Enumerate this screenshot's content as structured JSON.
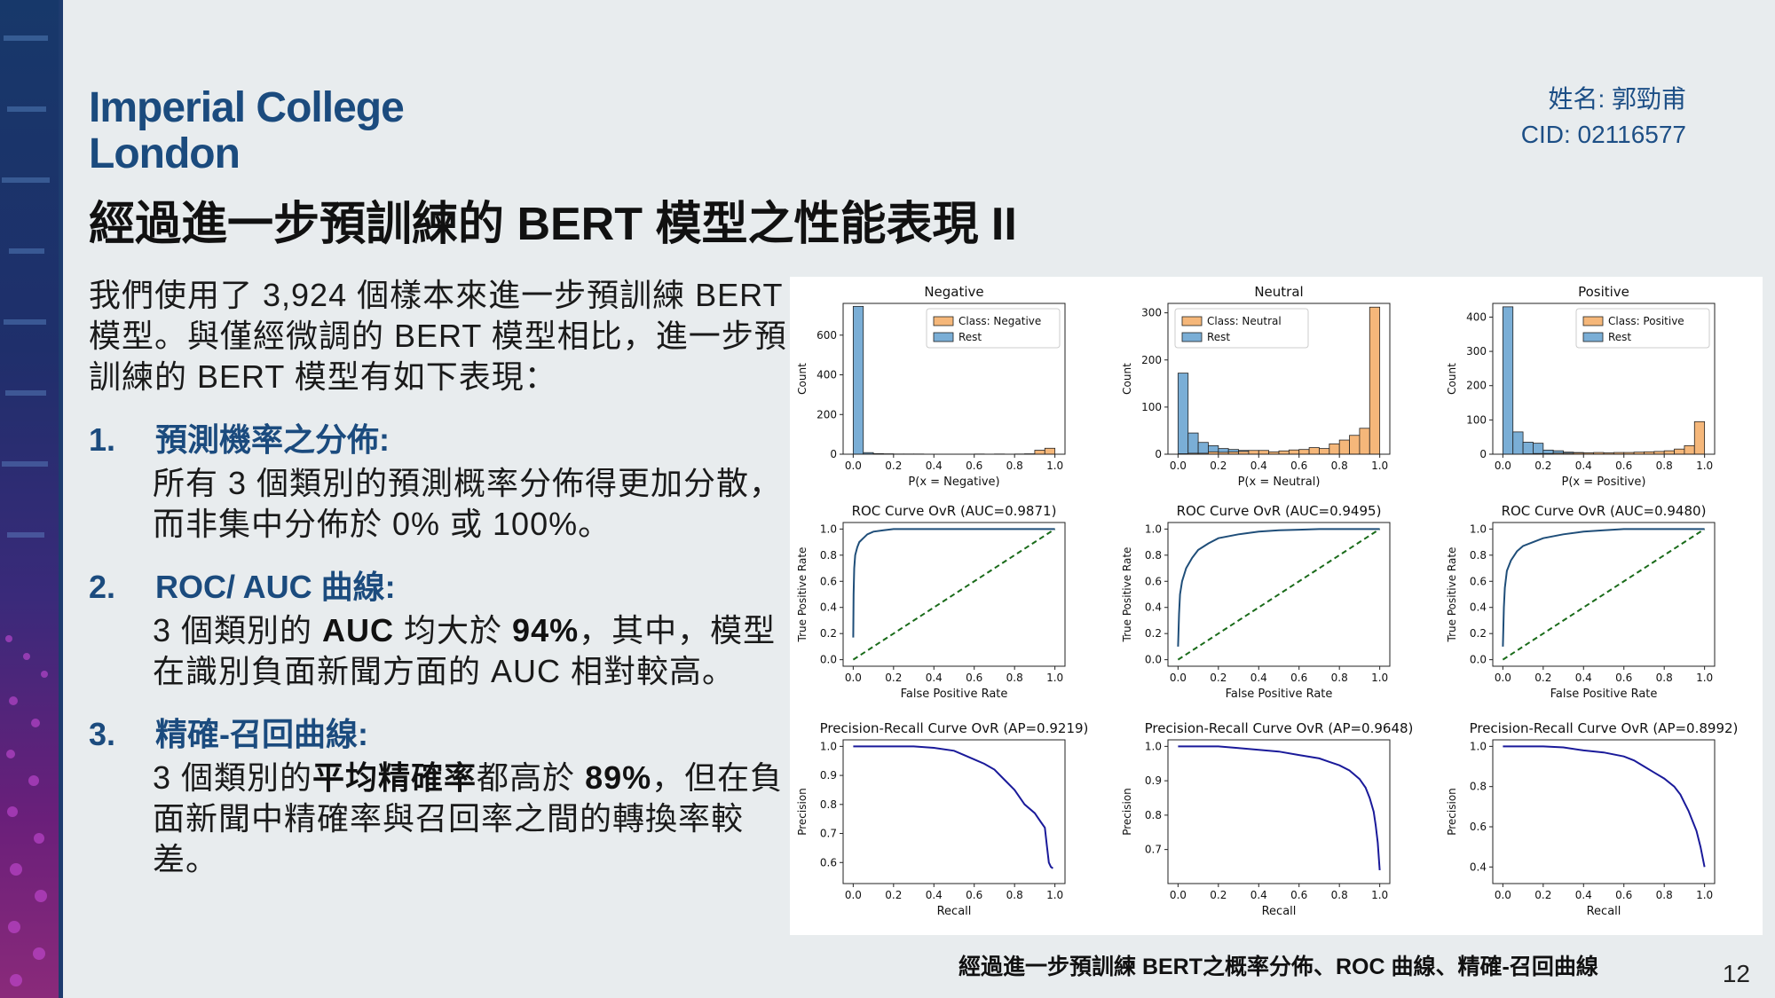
{
  "logo": {
    "line1": "Imperial College",
    "line2": "London"
  },
  "author": {
    "name": "姓名: 郭勁甫",
    "cid": "CID: 02116577"
  },
  "title": "經過進一步預訓練的 BERT 模型之性能表現 II",
  "intro": "我們使用了 3,924 個樣本來進一步預訓練 BERT 模型。與僅經微調的 BERT 模型相比，進一步預訓練的 BERT 模型有如下表現：",
  "items": [
    {
      "num": "1.",
      "heading": "預測機率之分佈:",
      "text_parts": [
        "所有 3 個類別的預測概率分佈得更加分散，而非集中分佈於 0% 或 100%。"
      ]
    },
    {
      "num": "2.",
      "heading": "ROC/ AUC 曲線:",
      "text_parts": [
        "3 個類別的 ",
        "AUC",
        " 均大於 ",
        "94%",
        "，其中，模型在識別負面新聞方面的 AUC 相對較高。"
      ]
    },
    {
      "num": "3.",
      "heading": "精確-召回曲線:",
      "text_parts": [
        "3 個類別的",
        "平均精確率",
        "都高於 ",
        "89%",
        "，但在負面新聞中精確率與召回率之間的轉換率較差。"
      ]
    }
  ],
  "caption": "經過進一步預訓練 BERT之概率分佈、ROC 曲線、精確-召回曲線",
  "page_number": "12",
  "colors": {
    "brand": "#1b4b7e",
    "class_bar": "#f5b77a",
    "rest_bar": "#7aaed6",
    "roc_line": "#1f4e79",
    "pr_line": "#1a1a9a",
    "diag": "#1a6b1a"
  },
  "chart_data": [
    {
      "type": "bar",
      "title": "Negative",
      "xlabel": "P(x = Negative)",
      "ylabel": "Count",
      "ylim": [
        0,
        760
      ],
      "xticks": [
        "0.0",
        "0.2",
        "0.4",
        "0.6",
        "0.8",
        "1.0"
      ],
      "yticks": [
        "0",
        "200",
        "400",
        "600"
      ],
      "legend": {
        "position": "top-right",
        "entries": [
          "Class: Negative",
          "Rest"
        ]
      },
      "bins": [
        0.0,
        0.05,
        0.1,
        0.15,
        0.2,
        0.25,
        0.3,
        0.35,
        0.4,
        0.45,
        0.5,
        0.55,
        0.6,
        0.65,
        0.7,
        0.75,
        0.8,
        0.85,
        0.9,
        0.95
      ],
      "series": [
        {
          "name": "Rest",
          "values": [
            745,
            8,
            3,
            2,
            1,
            1,
            1,
            0,
            0,
            0,
            0,
            0,
            0,
            0,
            1,
            0,
            0,
            0,
            0,
            0
          ]
        },
        {
          "name": "Class: Negative",
          "values": [
            0,
            1,
            0,
            0,
            0,
            0,
            0,
            0,
            0,
            0,
            0,
            0,
            1,
            0,
            0,
            0,
            1,
            2,
            20,
            30
          ]
        }
      ]
    },
    {
      "type": "bar",
      "title": "Neutral",
      "xlabel": "P(x = Neutral)",
      "ylabel": "Count",
      "ylim": [
        0,
        320
      ],
      "xticks": [
        "0.0",
        "0.2",
        "0.4",
        "0.6",
        "0.8",
        "1.0"
      ],
      "yticks": [
        "0",
        "100",
        "200",
        "300"
      ],
      "legend": {
        "position": "top-left",
        "entries": [
          "Class: Neutral",
          "Rest"
        ]
      },
      "bins": [
        0.0,
        0.05,
        0.1,
        0.15,
        0.2,
        0.25,
        0.3,
        0.35,
        0.4,
        0.45,
        0.5,
        0.55,
        0.6,
        0.65,
        0.7,
        0.75,
        0.8,
        0.85,
        0.9,
        0.95
      ],
      "series": [
        {
          "name": "Rest",
          "values": [
            172,
            45,
            25,
            18,
            12,
            10,
            8,
            6,
            5,
            4,
            4,
            3,
            3,
            2,
            2,
            2,
            2,
            1,
            1,
            0
          ]
        },
        {
          "name": "Class: Neutral",
          "values": [
            1,
            2,
            2,
            5,
            4,
            5,
            6,
            8,
            8,
            5,
            7,
            9,
            10,
            14,
            12,
            22,
            30,
            40,
            55,
            312
          ]
        }
      ]
    },
    {
      "type": "bar",
      "title": "Positive",
      "xlabel": "P(x = Positive)",
      "ylabel": "Count",
      "ylim": [
        0,
        440
      ],
      "xticks": [
        "0.0",
        "0.2",
        "0.4",
        "0.6",
        "0.8",
        "1.0"
      ],
      "yticks": [
        "0",
        "100",
        "200",
        "300",
        "400"
      ],
      "legend": {
        "position": "top-right",
        "entries": [
          "Class: Positive",
          "Rest"
        ]
      },
      "bins": [
        0.0,
        0.05,
        0.1,
        0.15,
        0.2,
        0.25,
        0.3,
        0.35,
        0.4,
        0.45,
        0.5,
        0.55,
        0.6,
        0.65,
        0.7,
        0.75,
        0.8,
        0.85,
        0.9,
        0.95
      ],
      "series": [
        {
          "name": "Rest",
          "values": [
            430,
            65,
            35,
            32,
            12,
            10,
            6,
            5,
            4,
            3,
            3,
            2,
            2,
            2,
            1,
            1,
            1,
            1,
            1,
            0
          ]
        },
        {
          "name": "Class: Positive",
          "values": [
            0,
            0,
            1,
            2,
            2,
            3,
            3,
            4,
            4,
            5,
            4,
            5,
            5,
            6,
            7,
            8,
            10,
            15,
            25,
            95
          ]
        }
      ]
    },
    {
      "type": "line",
      "title": "ROC Curve OvR (AUC=0.9871)",
      "xlabel": "False Positive Rate",
      "ylabel": "True Positive Rate",
      "xlim": [
        0,
        1
      ],
      "ylim": [
        0,
        1
      ],
      "xticks": [
        "0.0",
        "0.2",
        "0.4",
        "0.6",
        "0.8",
        "1.0"
      ],
      "yticks": [
        "0.0",
        "0.2",
        "0.4",
        "0.6",
        "0.8",
        "1.0"
      ],
      "x": [
        0,
        0.002,
        0.005,
        0.01,
        0.02,
        0.03,
        0.05,
        0.07,
        0.1,
        0.15,
        0.2,
        0.3,
        0.5,
        0.7,
        1.0
      ],
      "y": [
        0.17,
        0.5,
        0.7,
        0.8,
        0.86,
        0.9,
        0.93,
        0.96,
        0.98,
        0.99,
        1.0,
        1.0,
        1.0,
        1.0,
        1.0
      ]
    },
    {
      "type": "line",
      "title": "ROC Curve OvR (AUC=0.9495)",
      "xlabel": "False Positive Rate",
      "ylabel": "True Positive Rate",
      "xlim": [
        0,
        1
      ],
      "ylim": [
        0,
        1
      ],
      "xticks": [
        "0.0",
        "0.2",
        "0.4",
        "0.6",
        "0.8",
        "1.0"
      ],
      "yticks": [
        "0.0",
        "0.2",
        "0.4",
        "0.6",
        "0.8",
        "1.0"
      ],
      "x": [
        0,
        0.005,
        0.01,
        0.02,
        0.04,
        0.07,
        0.1,
        0.15,
        0.2,
        0.3,
        0.4,
        0.5,
        0.6,
        0.7,
        0.8,
        0.9,
        1.0
      ],
      "y": [
        0.1,
        0.35,
        0.5,
        0.6,
        0.7,
        0.78,
        0.84,
        0.89,
        0.93,
        0.96,
        0.98,
        0.99,
        0.995,
        1.0,
        1.0,
        1.0,
        1.0
      ]
    },
    {
      "type": "line",
      "title": "ROC Curve OvR (AUC=0.9480)",
      "xlabel": "False Positive Rate",
      "ylabel": "True Positive Rate",
      "xlim": [
        0,
        1
      ],
      "ylim": [
        0,
        1
      ],
      "xticks": [
        "0.0",
        "0.2",
        "0.4",
        "0.6",
        "0.8",
        "1.0"
      ],
      "yticks": [
        "0.0",
        "0.2",
        "0.4",
        "0.6",
        "0.8",
        "1.0"
      ],
      "x": [
        0,
        0.005,
        0.01,
        0.02,
        0.04,
        0.07,
        0.1,
        0.15,
        0.2,
        0.3,
        0.4,
        0.5,
        0.6,
        0.8,
        1.0
      ],
      "y": [
        0.1,
        0.4,
        0.55,
        0.68,
        0.76,
        0.83,
        0.87,
        0.9,
        0.93,
        0.96,
        0.98,
        0.99,
        1.0,
        1.0,
        1.0
      ]
    },
    {
      "type": "line",
      "title": "Precision-Recall Curve OvR (AP=0.9219)",
      "xlabel": "Recall",
      "ylabel": "Precision",
      "xlim": [
        0,
        1
      ],
      "ylim": [
        0.55,
        1.0
      ],
      "xticks": [
        "0.0",
        "0.2",
        "0.4",
        "0.6",
        "0.8",
        "1.0"
      ],
      "yticks": [
        "0.6",
        "0.7",
        "0.8",
        "0.9",
        "1.0"
      ],
      "x": [
        0,
        0.3,
        0.4,
        0.5,
        0.55,
        0.6,
        0.65,
        0.7,
        0.75,
        0.8,
        0.85,
        0.9,
        0.93,
        0.95,
        0.96,
        0.97,
        0.98,
        0.99
      ],
      "y": [
        1.0,
        1.0,
        0.995,
        0.985,
        0.97,
        0.955,
        0.94,
        0.92,
        0.885,
        0.85,
        0.8,
        0.77,
        0.74,
        0.72,
        0.66,
        0.6,
        0.585,
        0.58
      ]
    },
    {
      "type": "line",
      "title": "Precision-Recall Curve OvR (AP=0.9648)",
      "xlabel": "Recall",
      "ylabel": "Precision",
      "xlim": [
        0,
        1
      ],
      "ylim": [
        0.62,
        1.0
      ],
      "xticks": [
        "0.0",
        "0.2",
        "0.4",
        "0.6",
        "0.8",
        "1.0"
      ],
      "yticks": [
        "0.7",
        "0.8",
        "0.9",
        "1.0"
      ],
      "x": [
        0,
        0.2,
        0.3,
        0.4,
        0.5,
        0.6,
        0.7,
        0.75,
        0.8,
        0.85,
        0.9,
        0.93,
        0.95,
        0.97,
        0.98,
        0.99,
        1.0
      ],
      "y": [
        1.0,
        1.0,
        0.995,
        0.99,
        0.985,
        0.975,
        0.965,
        0.955,
        0.945,
        0.93,
        0.905,
        0.88,
        0.85,
        0.81,
        0.77,
        0.72,
        0.64
      ]
    },
    {
      "type": "line",
      "title": "Precision-Recall Curve OvR (AP=0.8992)",
      "xlabel": "Recall",
      "ylabel": "Precision",
      "xlim": [
        0,
        1
      ],
      "ylim": [
        0.35,
        1.0
      ],
      "xticks": [
        "0.0",
        "0.2",
        "0.4",
        "0.6",
        "0.8",
        "1.0"
      ],
      "yticks": [
        "0.4",
        "0.6",
        "0.8",
        "1.0"
      ],
      "x": [
        0,
        0.2,
        0.3,
        0.4,
        0.5,
        0.6,
        0.65,
        0.7,
        0.75,
        0.8,
        0.85,
        0.88,
        0.9,
        0.92,
        0.94,
        0.96,
        0.98,
        1.0
      ],
      "y": [
        1.0,
        1.0,
        0.995,
        0.98,
        0.97,
        0.95,
        0.93,
        0.9,
        0.87,
        0.84,
        0.8,
        0.76,
        0.72,
        0.68,
        0.63,
        0.58,
        0.5,
        0.4
      ]
    }
  ]
}
